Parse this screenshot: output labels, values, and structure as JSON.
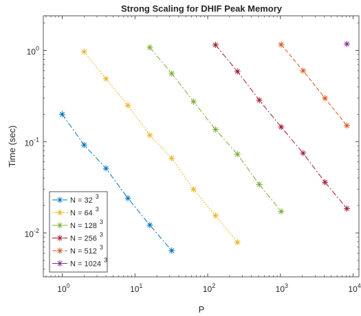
{
  "chart_data": {
    "type": "line",
    "title": "Strong Scaling for DHIF Peak Memory",
    "xlabel": "P",
    "ylabel": "Time (sec)",
    "xscale": "log",
    "yscale": "log",
    "xlim": [
      0.55,
      12000
    ],
    "ylim": [
      0.0033,
      2.4
    ],
    "grid": false,
    "legend_position": "bottom-left",
    "x_ticks": [
      {
        "value": 1,
        "base": "10",
        "exp": "0"
      },
      {
        "value": 10,
        "base": "10",
        "exp": "1"
      },
      {
        "value": 100,
        "base": "10",
        "exp": "2"
      },
      {
        "value": 1000,
        "base": "10",
        "exp": "3"
      },
      {
        "value": 10000,
        "base": "10",
        "exp": "4"
      }
    ],
    "y_ticks": [
      {
        "value": 0.01,
        "base": "10",
        "exp": "-2"
      },
      {
        "value": 0.1,
        "base": "10",
        "exp": "-1"
      },
      {
        "value": 1,
        "base": "10",
        "exp": "0"
      }
    ],
    "series": [
      {
        "name": "N = 32",
        "exp": "3",
        "color": "#0072BD",
        "dash": "8,3,2,3",
        "x": [
          1,
          2,
          4,
          8,
          16,
          32
        ],
        "y": [
          0.2,
          0.092,
          0.051,
          0.024,
          0.0122,
          0.0064
        ]
      },
      {
        "name": "N = 64",
        "exp": "3",
        "color": "#EDB120",
        "dash": "2,2",
        "x": [
          2,
          4,
          8,
          16,
          32,
          64,
          128,
          256
        ],
        "y": [
          0.97,
          0.49,
          0.25,
          0.118,
          0.066,
          0.03,
          0.0155,
          0.0079
        ]
      },
      {
        "name": "N = 128",
        "exp": "3",
        "color": "#77AC30",
        "dash": "8,3,2,3",
        "x": [
          16,
          32,
          64,
          128,
          256,
          512,
          1024
        ],
        "y": [
          1.08,
          0.56,
          0.275,
          0.136,
          0.073,
          0.034,
          0.0172
        ]
      },
      {
        "name": "N = 256",
        "exp": "3",
        "color": "#A2142F",
        "dash": "8,3,2,3",
        "x": [
          128,
          256,
          512,
          1024,
          2048,
          4096,
          8192
        ],
        "y": [
          1.15,
          0.59,
          0.285,
          0.145,
          0.075,
          0.036,
          0.0185
        ]
      },
      {
        "name": "N = 512",
        "exp": "3",
        "color": "#D95319",
        "dash": "6,3",
        "x": [
          1024,
          2048,
          4096,
          8192
        ],
        "y": [
          1.16,
          0.6,
          0.3,
          0.15
        ]
      },
      {
        "name": "N = 1024",
        "exp": "3",
        "color": "#7E2F8E",
        "dash": "",
        "x": [
          8192
        ],
        "y": [
          1.18
        ]
      }
    ]
  }
}
